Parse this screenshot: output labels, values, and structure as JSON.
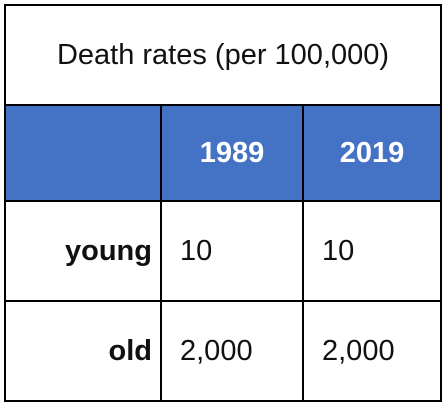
{
  "table": {
    "title": "Death rates (per 100,000)",
    "corner_label": "",
    "columns": [
      "1989",
      "2019"
    ],
    "rows": [
      {
        "label": "young",
        "values": [
          "10",
          "10"
        ]
      },
      {
        "label": "old",
        "values": [
          "2,000",
          "2,000"
        ]
      }
    ],
    "header_color": "#4472c4",
    "border_color": "#000000"
  }
}
